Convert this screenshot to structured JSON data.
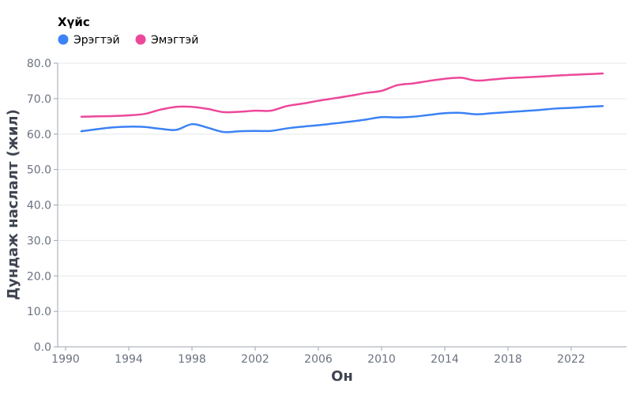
{
  "chart_data": {
    "type": "line",
    "title": "",
    "xlabel": "Он",
    "ylabel": "Дундаж наслалт (жил)",
    "xlim": [
      1989.5,
      2025.5
    ],
    "ylim": [
      0,
      80
    ],
    "x_ticks": [
      1990,
      1994,
      1998,
      2002,
      2006,
      2010,
      2014,
      2018,
      2022
    ],
    "y_ticks": [
      0,
      10,
      20,
      30,
      40,
      50,
      60,
      70,
      80
    ],
    "y_tick_labels": [
      "0.0",
      "10.0",
      "20.0",
      "30.0",
      "40.0",
      "50.0",
      "60.0",
      "70.0",
      "80.0"
    ],
    "grid": true,
    "legend": {
      "title": "Хүйс",
      "position": "top-left"
    },
    "x": [
      1991,
      1992,
      1993,
      1994,
      1995,
      1996,
      1997,
      1998,
      1999,
      2000,
      2001,
      2002,
      2003,
      2004,
      2005,
      2006,
      2007,
      2008,
      2009,
      2010,
      2011,
      2012,
      2013,
      2014,
      2015,
      2016,
      2017,
      2018,
      2019,
      2020,
      2021,
      2022,
      2023,
      2024
    ],
    "series": [
      {
        "name": "Эрэгтэй",
        "color": "#3b82f6",
        "values": [
          60.8,
          61.4,
          61.9,
          62.1,
          62.0,
          61.5,
          61.2,
          62.8,
          61.8,
          60.6,
          60.8,
          60.9,
          60.9,
          61.6,
          62.1,
          62.5,
          63.0,
          63.5,
          64.1,
          64.8,
          64.7,
          64.9,
          65.4,
          65.9,
          66.0,
          65.6,
          65.9,
          66.2,
          66.5,
          66.8,
          67.2,
          67.4,
          67.7,
          67.9
        ]
      },
      {
        "name": "Эмэгтэй",
        "color": "#ec4899",
        "values": [
          64.9,
          65.0,
          65.1,
          65.3,
          65.7,
          66.9,
          67.7,
          67.7,
          67.1,
          66.2,
          66.3,
          66.6,
          66.6,
          67.9,
          68.6,
          69.4,
          70.1,
          70.8,
          71.6,
          72.2,
          73.8,
          74.3,
          75.0,
          75.6,
          75.9,
          75.1,
          75.4,
          75.8,
          76.0,
          76.2,
          76.5,
          76.7,
          76.9,
          77.1
        ]
      }
    ]
  }
}
